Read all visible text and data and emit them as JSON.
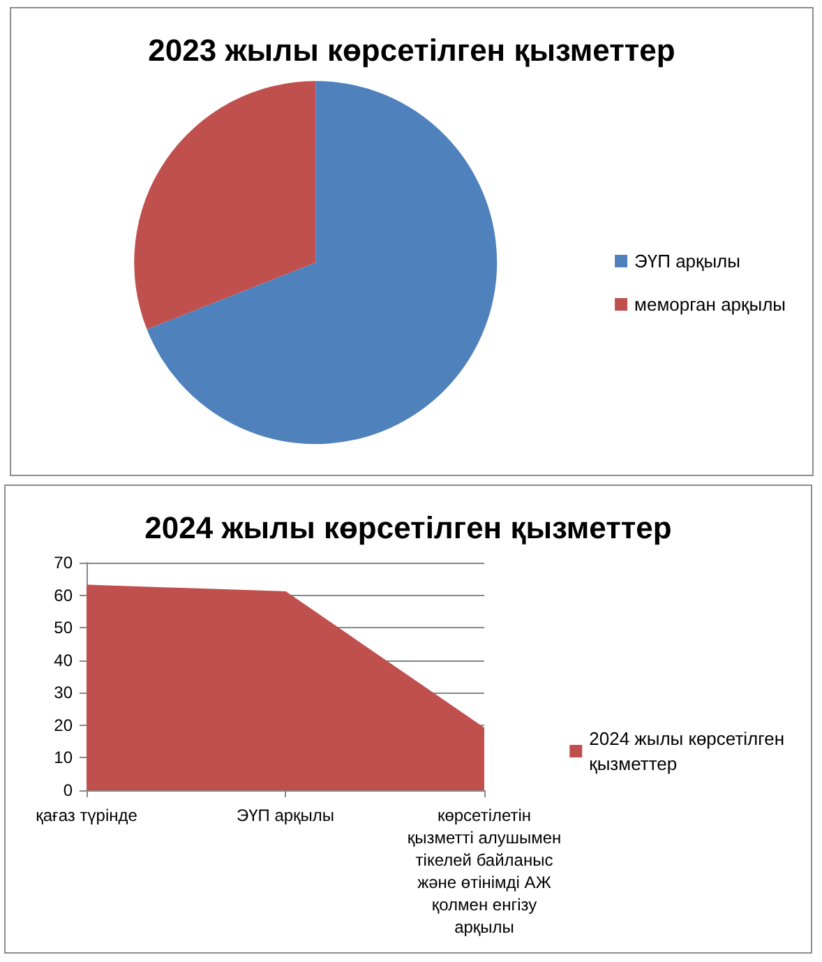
{
  "chart_data": [
    {
      "type": "pie",
      "title": "2023 жылы көрсетілген қызметтер",
      "categories": [
        "ЭҮП арқылы",
        "меморган арқылы"
      ],
      "values": [
        69,
        31
      ],
      "colors": [
        "#4f81bd",
        "#c0504d"
      ],
      "legend": "right"
    },
    {
      "type": "area",
      "title": "2024 жылы көрсетілген қызметтер",
      "categories": [
        "қағаз түрінде",
        "ЭҮП арқылы",
        "көрсетілетін қызметті алушымен тікелей байланыс және өтінімді АЖ қолмен енгізу арқылы"
      ],
      "series": [
        {
          "name": "2024 жылы көрсетілген қызметтер",
          "color": "#c0504d",
          "values": [
            63,
            61,
            19
          ]
        }
      ],
      "ylim": [
        0,
        70
      ],
      "yticks": [
        0,
        10,
        20,
        30,
        40,
        50,
        60,
        70
      ],
      "grid": "y",
      "legend": "right"
    }
  ]
}
